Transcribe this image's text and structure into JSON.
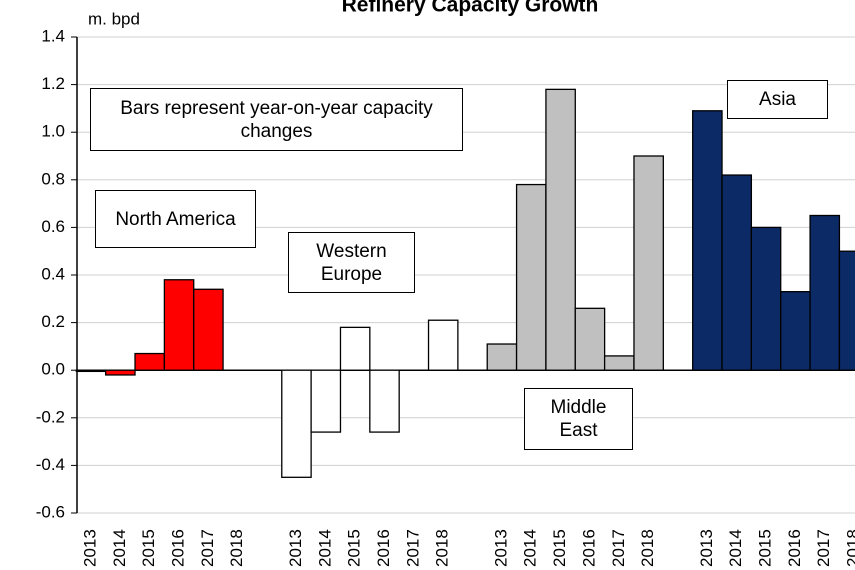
{
  "chart_data": {
    "type": "bar",
    "title": "Refinery Capacity Growth",
    "y_label": "m. bpd",
    "annotation": "Bars represent year-on-year capacity changes",
    "categories": [
      "2013",
      "2014",
      "2015",
      "2016",
      "2017",
      "2018",
      "2013",
      "2014",
      "2015",
      "2016",
      "2017",
      "2018",
      "2013",
      "2014",
      "2015",
      "2016",
      "2017",
      "2018",
      "2013",
      "2014",
      "2015",
      "2016",
      "2017",
      "2018"
    ],
    "series": [
      {
        "name": "North America",
        "color": "#ff0000",
        "values": [
          -0.005,
          -0.02,
          0.07,
          0.38,
          0.34,
          null,
          null,
          null,
          null,
          null,
          null,
          null,
          null,
          null,
          null,
          null,
          null,
          null,
          null,
          null,
          null,
          null,
          null,
          null
        ]
      },
      {
        "name": "Western Europe",
        "color": "#ffffff",
        "values": [
          null,
          null,
          null,
          null,
          null,
          null,
          -0.45,
          -0.26,
          0.18,
          -0.26,
          null,
          0.21,
          null,
          null,
          null,
          null,
          null,
          null,
          null,
          null,
          null,
          null,
          null,
          null
        ]
      },
      {
        "name": "Middle East",
        "color": "#c0c0c0",
        "values": [
          null,
          null,
          null,
          null,
          null,
          null,
          null,
          null,
          null,
          null,
          null,
          null,
          0.11,
          0.78,
          1.18,
          0.26,
          0.06,
          0.9,
          null,
          null,
          null,
          null,
          null,
          null
        ]
      },
      {
        "name": "Asia",
        "color": "#0c2a66",
        "values": [
          null,
          null,
          null,
          null,
          null,
          null,
          null,
          null,
          null,
          null,
          null,
          null,
          null,
          null,
          null,
          null,
          null,
          null,
          1.09,
          0.82,
          0.6,
          0.33,
          0.65,
          0.5
        ]
      }
    ],
    "ylim": [
      -0.6,
      1.4
    ],
    "yticks": [
      -0.6,
      -0.4,
      -0.2,
      {
        "value": 0,
        "label": "0.0"
      },
      0.2,
      0.4,
      0.6,
      0.8,
      {
        "value": 1,
        "label": "1.0"
      },
      1.2,
      1.4
    ],
    "grid": true
  }
}
